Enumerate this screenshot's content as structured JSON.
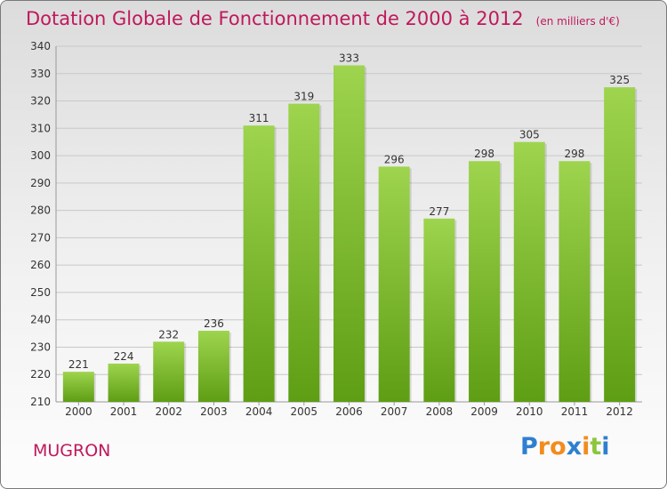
{
  "title": "Dotation Globale de Fonctionnement de 2000 à 2012",
  "unit_note": "(en milliers d'€)",
  "commune": "MUGRON",
  "logo": {
    "text": "Proxiti",
    "letters": [
      {
        "ch": "P",
        "color": "#2f7fd0"
      },
      {
        "ch": "r",
        "color": "#f28c1e"
      },
      {
        "ch": "o",
        "color": "#f28c1e"
      },
      {
        "ch": "x",
        "color": "#2f7fd0"
      },
      {
        "ch": "i",
        "color": "#f28c1e"
      },
      {
        "ch": "t",
        "color": "#8cc63f"
      },
      {
        "ch": "i",
        "color": "#2f7fd0"
      }
    ]
  },
  "colors": {
    "title": "#c0185c",
    "bar_top": "#9ed44e",
    "bar_bottom": "#5e9e14",
    "grid": "#c8c8c8"
  },
  "chart_data": {
    "type": "bar",
    "categories": [
      "2000",
      "2001",
      "2002",
      "2003",
      "2004",
      "2005",
      "2006",
      "2007",
      "2008",
      "2009",
      "2010",
      "2011",
      "2012"
    ],
    "values": [
      221,
      224,
      232,
      236,
      311,
      319,
      333,
      296,
      277,
      298,
      305,
      298,
      325
    ],
    "title": "Dotation Globale de Fonctionnement de 2000 à 2012",
    "ylabel": "",
    "xlabel": "",
    "ylim": [
      210,
      340
    ],
    "yticks": [
      210,
      220,
      230,
      240,
      250,
      260,
      270,
      280,
      290,
      300,
      310,
      320,
      330,
      340
    ],
    "grid": true,
    "legend": "none"
  }
}
